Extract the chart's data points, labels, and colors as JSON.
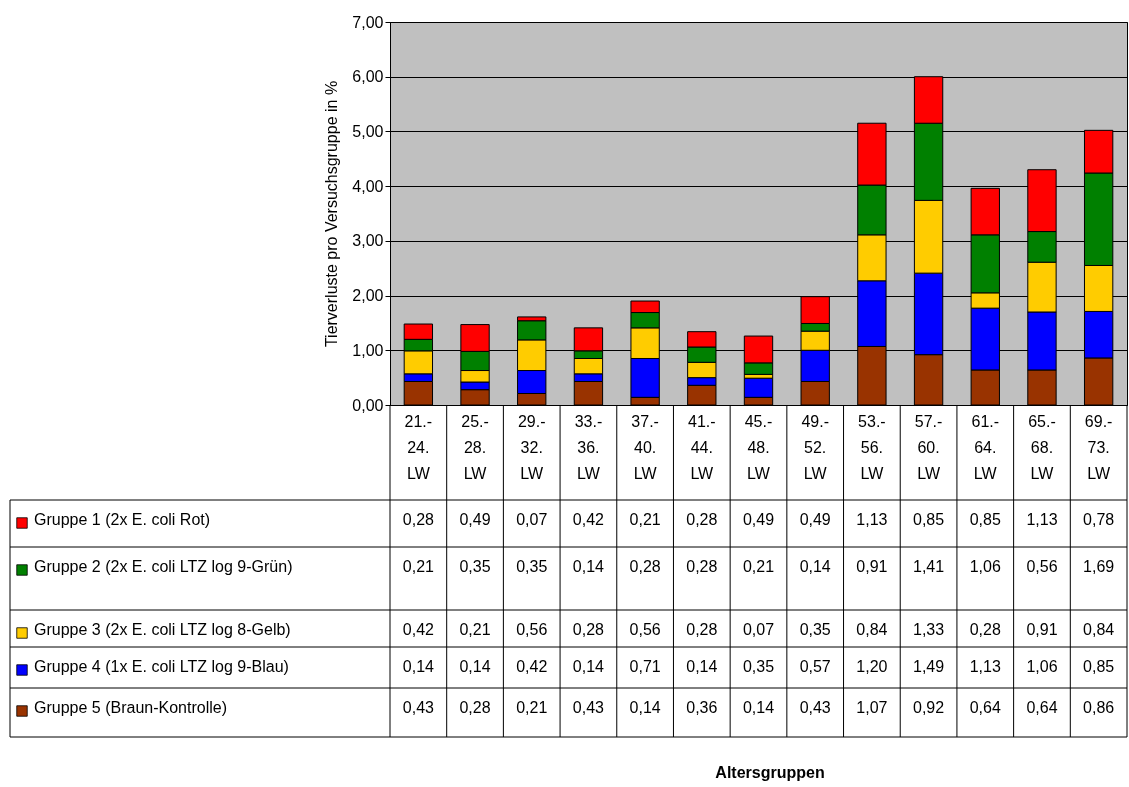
{
  "chart_data": {
    "type": "bar",
    "stacked": true,
    "ylabel": "Tierverluste pro Versuchsgruppe in %",
    "annotations": [
      "Altersgruppen"
    ],
    "categories": [
      "21.- 24. LW",
      "25.- 28. LW",
      "29.- 32. LW",
      "33.- 36. LW",
      "37.- 40. LW",
      "41.- 44. LW",
      "45.- 48. LW",
      "49.- 52. LW",
      "53.- 56. LW",
      "57.- 60. LW",
      "61.- 64. LW",
      "65.- 68. LW",
      "69.- 73. LW"
    ],
    "series": [
      {
        "name": "Gruppe 5 (Braun-Kontrolle)",
        "color": "#993300",
        "values": [
          0.43,
          0.28,
          0.21,
          0.43,
          0.14,
          0.36,
          0.14,
          0.43,
          1.07,
          0.92,
          0.64,
          0.64,
          0.86
        ],
        "value_labels": [
          "0,43",
          "0,28",
          "0,21",
          "0,43",
          "0,14",
          "0,36",
          "0,14",
          "0,43",
          "1,07",
          "0,92",
          "0,64",
          "0,64",
          "0,86"
        ]
      },
      {
        "name": "Gruppe 4 (1x E. coli LTZ log 9-Blau)",
        "color": "#0000ff",
        "values": [
          0.14,
          0.14,
          0.42,
          0.14,
          0.71,
          0.14,
          0.35,
          0.57,
          1.2,
          1.49,
          1.13,
          1.06,
          0.85
        ],
        "value_labels": [
          "0,14",
          "0,14",
          "0,42",
          "0,14",
          "0,71",
          "0,14",
          "0,35",
          "0,57",
          "1,20",
          "1,49",
          "1,13",
          "1,06",
          "0,85"
        ]
      },
      {
        "name": "Gruppe 3 (2x E. coli LTZ log 8-Gelb)",
        "color": "#ffcc00",
        "values": [
          0.42,
          0.21,
          0.56,
          0.28,
          0.56,
          0.28,
          0.07,
          0.35,
          0.84,
          1.33,
          0.28,
          0.91,
          0.84
        ],
        "value_labels": [
          "0,42",
          "0,21",
          "0,56",
          "0,28",
          "0,56",
          "0,28",
          "0,07",
          "0,35",
          "0,84",
          "1,33",
          "0,28",
          "0,91",
          "0,84"
        ]
      },
      {
        "name": "Gruppe 2 (2x E. coli LTZ log 9-Grün)",
        "color": "#008000",
        "values": [
          0.21,
          0.35,
          0.35,
          0.14,
          0.28,
          0.28,
          0.21,
          0.14,
          0.91,
          1.41,
          1.06,
          0.56,
          1.69
        ],
        "value_labels": [
          "0,21",
          "0,35",
          "0,35",
          "0,14",
          "0,28",
          "0,28",
          "0,21",
          "0,14",
          "0,91",
          "1,41",
          "1,06",
          "0,56",
          "1,69"
        ]
      },
      {
        "name": "Gruppe 1 (2x E. coli Rot)",
        "color": "#ff0000",
        "values": [
          0.28,
          0.49,
          0.07,
          0.42,
          0.21,
          0.28,
          0.49,
          0.49,
          1.13,
          0.85,
          0.85,
          1.13,
          0.78
        ],
        "value_labels": [
          "0,28",
          "0,49",
          "0,07",
          "0,42",
          "0,21",
          "0,28",
          "0,49",
          "0,49",
          "1,13",
          "0,85",
          "0,85",
          "1,13",
          "0,78"
        ]
      }
    ],
    "ylim": [
      0,
      7
    ],
    "yticks": [
      {
        "value": 0,
        "label": "0,00"
      },
      {
        "value": 1,
        "label": "1,00"
      },
      {
        "value": 2,
        "label": "2,00"
      },
      {
        "value": 3,
        "label": "3,00"
      },
      {
        "value": 4,
        "label": "4,00"
      },
      {
        "value": 5,
        "label": "5,00"
      },
      {
        "value": 6,
        "label": "6,00"
      },
      {
        "value": 7,
        "label": "7,00"
      }
    ],
    "grid": "y",
    "legend": "bottom left"
  }
}
